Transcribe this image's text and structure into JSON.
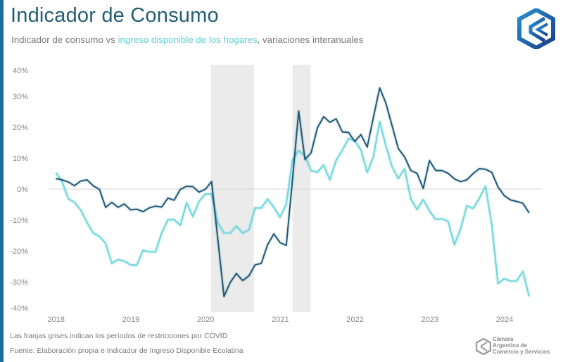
{
  "header": {
    "title": "Indicador de Consumo",
    "subtitle_part1": "Indicador de consumo vs ",
    "subtitle_highlight": "ingreso disponible de los hogares",
    "subtitle_part2": ", variaciones interanuales"
  },
  "footer": {
    "note": "Las franjas grises indican los períodos de restricciones por COVID",
    "source": "Fuente: Elaboración propia e Indicador de Ingreso Disponible Ecolatina"
  },
  "brand": {
    "logo_line1": "Cámara",
    "logo_line2": "Argentina de",
    "logo_line3": "Comercio y Servicios",
    "logo_icon": "cac-hexagon-logo-icon"
  },
  "colors": {
    "accent_bar": "#1b6d9b",
    "title": "#235e72",
    "consumo": "#1f5a78",
    "ingreso": "#6fd6dc",
    "covid_band": "#ebebeb",
    "zero_line": "#d6d6d6"
  },
  "chart_data": {
    "type": "line",
    "title": "Indicador de Consumo",
    "subtitle": "Indicador de consumo vs ingreso disponible de los hogares, variaciones interanuales",
    "xlabel": "",
    "ylabel": "",
    "x_start": "2018-01",
    "x_frequency": "monthly",
    "x_ticks": [
      "2018",
      "2019",
      "2020",
      "2021",
      "2022",
      "2023",
      "2024"
    ],
    "y_ticks": [
      "40%",
      "30%",
      "20%",
      "10%",
      "0%",
      "-10%",
      "-20%",
      "-30%",
      "-40%"
    ],
    "y_tick_values": [
      40,
      30,
      20,
      10,
      0,
      -10,
      -20,
      -30,
      -40
    ],
    "ylim": [
      -40,
      40
    ],
    "grid": false,
    "zero_line": true,
    "legend": "none (series identified by subtitle color)",
    "shaded_periods": [
      {
        "label": "COVID restrictions",
        "start_month_index": 24.9,
        "end_month_index": 31.8
      },
      {
        "label": "COVID restrictions",
        "start_month_index": 38.0,
        "end_month_index": 40.9
      }
    ],
    "series": [
      {
        "name": "Indicador de consumo",
        "color": "#1f5a78",
        "values": [
          3.4,
          3.0,
          2.3,
          1.1,
          2.6,
          3.0,
          1.1,
          -0.1,
          -5.9,
          -4.3,
          -5.9,
          -4.8,
          -6.7,
          -6.5,
          -7.3,
          -6.1,
          -5.5,
          -5.8,
          -2.9,
          -3.6,
          -0.1,
          0.9,
          0.8,
          -1.0,
          -0.1,
          2.4,
          -16.0,
          -34.7,
          -30.2,
          -27.3,
          -29.6,
          -28.1,
          -24.5,
          -24.0,
          -18.0,
          -14.5,
          -17.3,
          -18.2,
          3.0,
          25.2,
          9.6,
          11.7,
          19.8,
          23.4,
          21.6,
          22.7,
          18.5,
          18.3,
          15.4,
          17.6,
          13.6,
          23.2,
          32.7,
          27.8,
          20.4,
          13.1,
          10.4,
          6.0,
          5.1,
          0.2,
          9.2,
          6.0,
          6.0,
          5.1,
          3.3,
          2.4,
          3.0,
          5.0,
          6.6,
          6.4,
          5.4,
          0.7,
          -2.1,
          -3.5,
          -4.0,
          -4.6,
          -7.7
        ]
      },
      {
        "name": "Ingreso disponible de los hogares",
        "color": "#6fd6dc",
        "values": [
          5.3,
          2.5,
          -3.1,
          -4.3,
          -6.8,
          -10.7,
          -14.2,
          -15.3,
          -17.6,
          -24.0,
          -22.8,
          -23.3,
          -24.5,
          -24.6,
          -19.8,
          -20.3,
          -20.3,
          -14.2,
          -9.9,
          -9.9,
          -11.7,
          -4.4,
          -8.9,
          -4.0,
          -1.6,
          -1.6,
          -10.8,
          -14.2,
          -14.2,
          -12.0,
          -14.2,
          -13.2,
          -6.1,
          -6.1,
          -3.2,
          -5.9,
          -9.1,
          -4.9,
          9.5,
          12.4,
          10.7,
          6.0,
          5.4,
          7.8,
          3.0,
          9.2,
          12.6,
          16.3,
          15.7,
          12.6,
          5.4,
          10.4,
          21.8,
          14.0,
          7.2,
          3.4,
          6.6,
          -3.2,
          -6.6,
          -3.4,
          -7.1,
          -9.8,
          -9.6,
          -10.5,
          -18.0,
          -12.9,
          -5.4,
          -6.3,
          -3.0,
          0.9,
          -11.5,
          -30.5,
          -29.0,
          -29.7,
          -29.7,
          -26.6,
          -34.7
        ]
      }
    ]
  }
}
